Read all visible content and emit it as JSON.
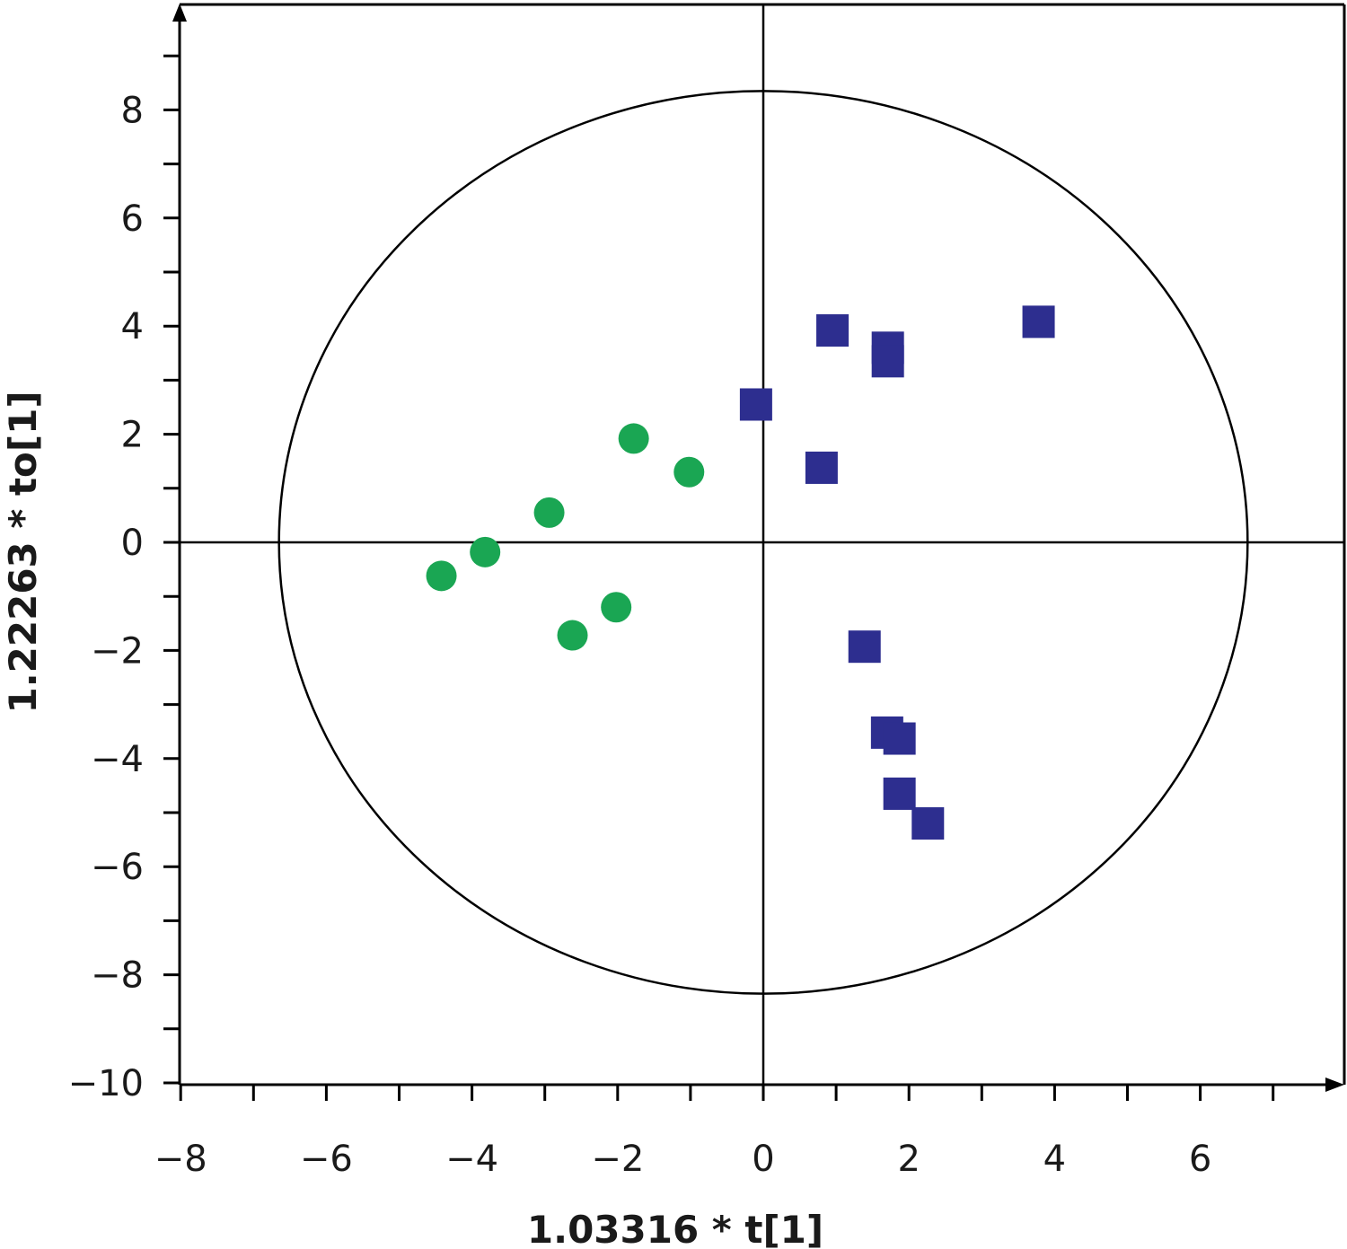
{
  "chart_data": {
    "type": "scatter",
    "title": "",
    "xlabel": "1.03316 * t[1]",
    "ylabel": "1.22263 * to[1]",
    "xlim": [
      -8,
      8
    ],
    "ylim": [
      -10,
      10
    ],
    "x_ticks": [
      -8,
      -6,
      -4,
      -2,
      0,
      2,
      4,
      6
    ],
    "x_tick_labels": [
      "−8",
      "−6",
      "−4",
      "−2",
      "0",
      "2",
      "4",
      "6"
    ],
    "y_ticks": [
      8,
      6,
      4,
      2,
      0,
      -2,
      -4,
      -6,
      -8,
      -10
    ],
    "y_tick_labels": [
      "8",
      "6",
      "4",
      "2",
      "0",
      "−2",
      "−4",
      "−6",
      "−8",
      "−10"
    ],
    "grid": false,
    "ellipse": {
      "rx": 6.65,
      "ry": 8.35
    },
    "series": [
      {
        "marker": "circle",
        "color": "#1aa653",
        "points": [
          [
            -1.78,
            1.92
          ],
          [
            -1.02,
            1.3
          ],
          [
            -2.94,
            0.55
          ],
          [
            -3.82,
            -0.18
          ],
          [
            -4.42,
            -0.62
          ],
          [
            -2.02,
            -1.2
          ],
          [
            -2.62,
            -1.72
          ]
        ]
      },
      {
        "marker": "square",
        "color": "#2d2e8f",
        "points": [
          [
            0.95,
            3.92
          ],
          [
            1.71,
            3.6
          ],
          [
            1.71,
            3.35
          ],
          [
            3.78,
            4.08
          ],
          [
            -0.1,
            2.55
          ],
          [
            0.8,
            1.38
          ],
          [
            1.39,
            -1.93
          ],
          [
            1.7,
            -3.52
          ],
          [
            1.87,
            -3.63
          ],
          [
            1.87,
            -4.65
          ],
          [
            2.26,
            -5.2
          ]
        ]
      }
    ]
  }
}
